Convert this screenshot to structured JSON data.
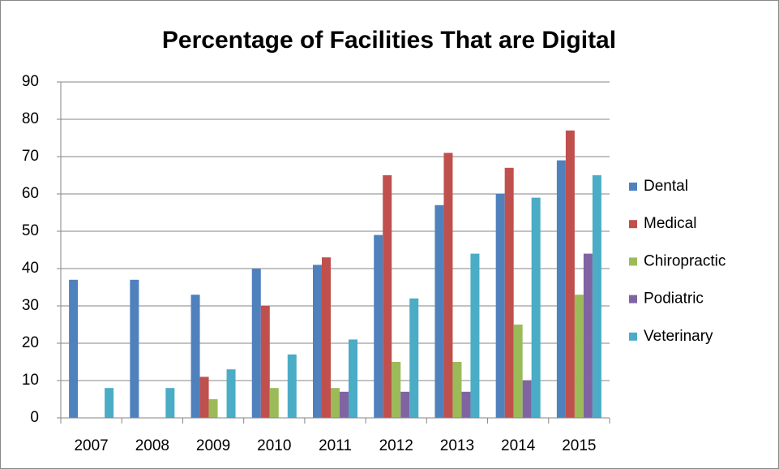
{
  "chart_data": {
    "type": "bar",
    "title": "Percentage of Facilities That are Digital",
    "categories": [
      "2007",
      "2008",
      "2009",
      "2010",
      "2011",
      "2012",
      "2013",
      "2014",
      "2015"
    ],
    "series": [
      {
        "name": "Dental",
        "color": "#4f81bd",
        "values": [
          37,
          37,
          33,
          40,
          41,
          49,
          57,
          60,
          69
        ]
      },
      {
        "name": "Medical",
        "color": "#c0504d",
        "values": [
          null,
          null,
          11,
          30,
          43,
          65,
          71,
          67,
          77
        ]
      },
      {
        "name": "Chiropractic",
        "color": "#9bbb59",
        "values": [
          null,
          null,
          5,
          8,
          8,
          15,
          15,
          25,
          33
        ]
      },
      {
        "name": "Podiatric",
        "color": "#8064a2",
        "values": [
          null,
          null,
          null,
          null,
          7,
          7,
          7,
          10,
          44
        ]
      },
      {
        "name": "Veterinary",
        "color": "#4bacc6",
        "values": [
          8,
          8,
          13,
          17,
          21,
          32,
          44,
          59,
          65
        ]
      }
    ],
    "ylim": [
      0,
      90
    ],
    "yticks": [
      0,
      10,
      20,
      30,
      40,
      50,
      60,
      70,
      80,
      90
    ],
    "grid": true,
    "legend": "right"
  }
}
